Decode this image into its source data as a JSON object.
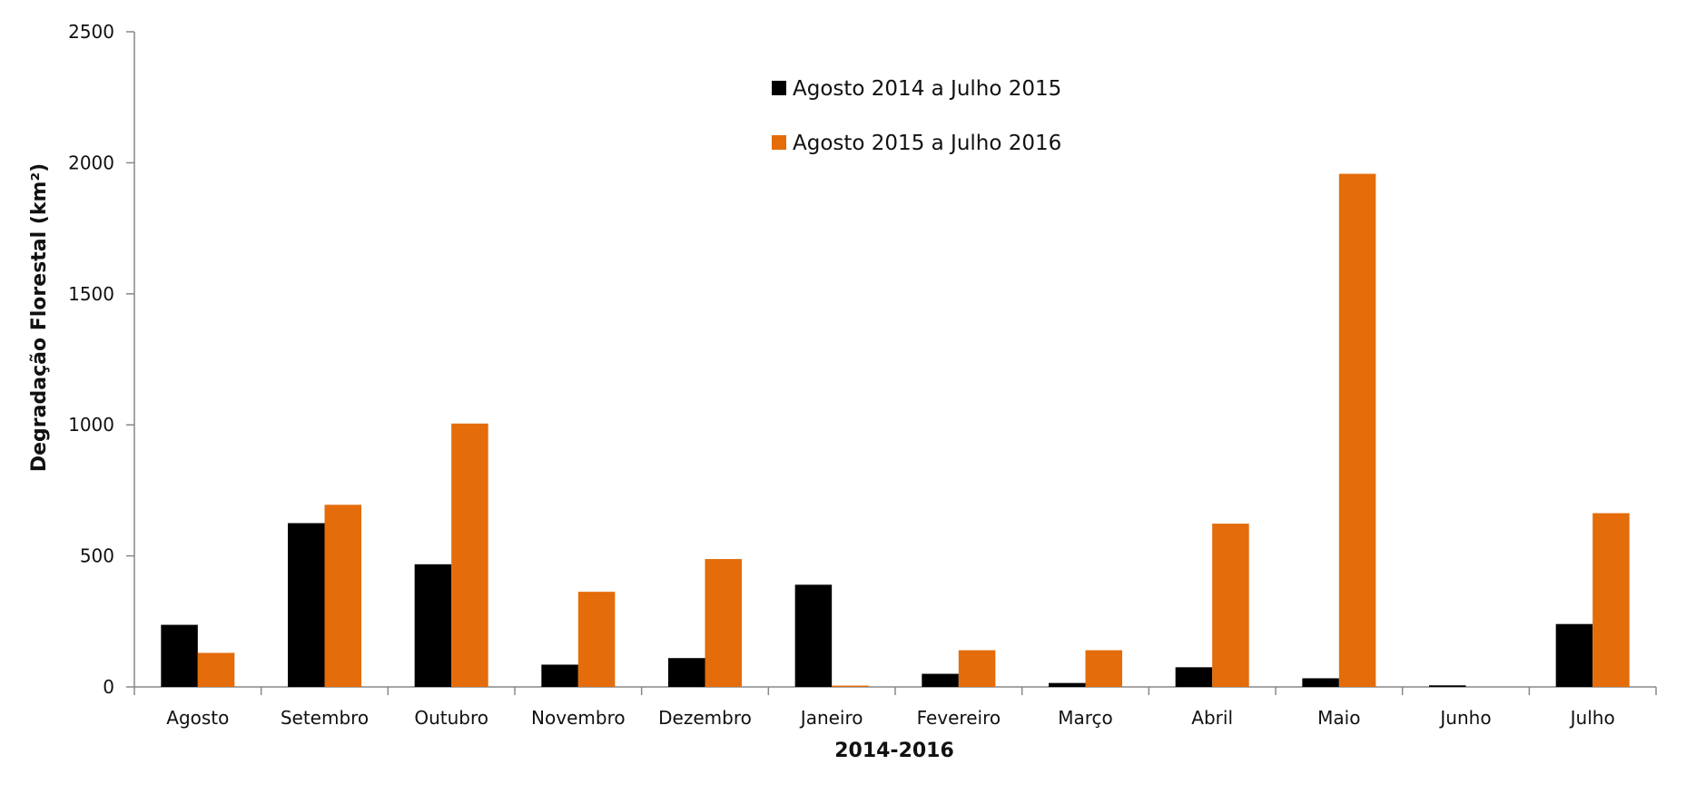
{
  "chart_data": {
    "type": "bar",
    "categories": [
      "Agosto",
      "Setembro",
      "Outubro",
      "Novembro",
      "Dezembro",
      "Janeiro",
      "Fevereiro",
      "Março",
      "Abril",
      "Maio",
      "Junho",
      "Julho"
    ],
    "series": [
      {
        "name": "Agosto 2014 a Julho 2015",
        "color": "#000000",
        "values": [
          237,
          625,
          468,
          85,
          110,
          390,
          50,
          15,
          75,
          33,
          6,
          240
        ]
      },
      {
        "name": "Agosto 2015 a Julho 2016",
        "color": "#e46c0a",
        "values": [
          130,
          695,
          1005,
          363,
          488,
          5,
          140,
          140,
          623,
          1958,
          0,
          663
        ]
      }
    ],
    "title": "",
    "xlabel": "2014-2016",
    "ylabel": "Degradação Florestal (km²)",
    "ylim": [
      0,
      2500
    ],
    "yticks": [
      0,
      500,
      1000,
      1500,
      2000,
      2500
    ],
    "grid": false,
    "legend_position": "top-center"
  }
}
